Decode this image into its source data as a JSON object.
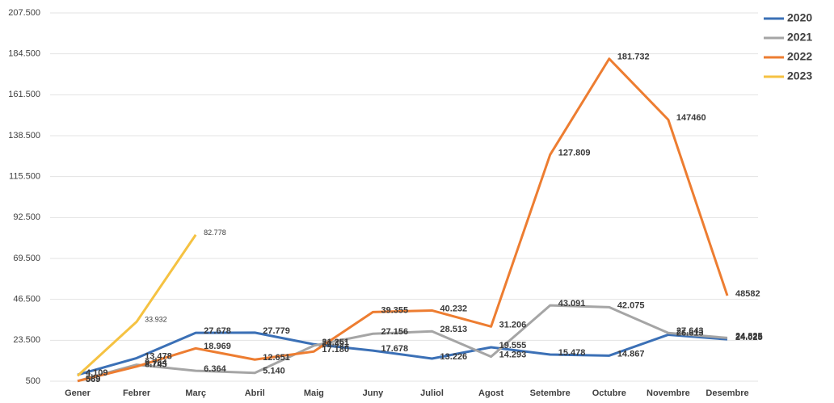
{
  "chart_data": {
    "type": "line",
    "categories": [
      "Gener",
      "Febrer",
      "Març",
      "Abril",
      "Maig",
      "Juny",
      "Juliol",
      "Agost",
      "Setembre",
      "Octubre",
      "Novembre",
      "Desembre"
    ],
    "ylim": [
      500,
      207500
    ],
    "yticks": [
      500,
      {
        "value": 23500,
        "label": "23.500"
      },
      {
        "value": 46500,
        "label": "46.500"
      },
      {
        "value": 69500,
        "label": "69.500"
      },
      {
        "value": 92500,
        "label": "92.500"
      },
      {
        "value": 115500,
        "label": "115.500"
      },
      {
        "value": 138500,
        "label": "138.500"
      },
      {
        "value": 161500,
        "label": "161.500"
      },
      {
        "value": 184500,
        "label": "184.500"
      },
      {
        "value": 207500,
        "label": "207.500"
      }
    ],
    "grid": true,
    "legend": "right",
    "series": [
      {
        "name": "2020",
        "color": "#3b70b6",
        "values": [
          4109,
          13478,
          27678,
          27779,
          21251,
          17678,
          13226,
          19555,
          15478,
          14867,
          26613,
          24025
        ],
        "value_labels": [
          "4.109",
          "13.478",
          "27.678",
          "27.779",
          "21.251",
          "17.678",
          "13.226",
          "19.555",
          "15.478",
          "14.867",
          "26.613",
          "24.025"
        ]
      },
      {
        "name": "2021",
        "color": "#a5a5a5",
        "values": [
          589,
          9764,
          6364,
          5140,
          20491,
          27156,
          28513,
          14293,
          43091,
          42075,
          27643,
          24825
        ],
        "value_labels": [
          "589",
          "9.764",
          "6.364",
          "5.140",
          "20.491",
          "27.156",
          "28.513",
          "14.293",
          "43.091",
          "42.075",
          "27.643",
          "24.825"
        ]
      },
      {
        "name": "2022",
        "color": "#ed7d31",
        "values": [
          569,
          8745,
          18969,
          12651,
          17180,
          39355,
          40232,
          31206,
          127809,
          181732,
          147460,
          48582
        ],
        "value_labels": [
          "569",
          "8.745",
          "18.969",
          "12.651",
          "17.180",
          "39.355",
          "40.232",
          "31.206",
          "127.809",
          "181.732",
          "147460",
          "48582"
        ]
      },
      {
        "name": "2023",
        "color": "#f5c242",
        "values": [
          3500,
          33932,
          82778,
          null,
          null,
          null,
          null,
          null,
          null,
          null,
          null,
          null
        ],
        "value_labels": [
          null,
          "33.932",
          "82.778",
          null,
          null,
          null,
          null,
          null,
          null,
          null,
          null,
          null
        ]
      }
    ]
  }
}
